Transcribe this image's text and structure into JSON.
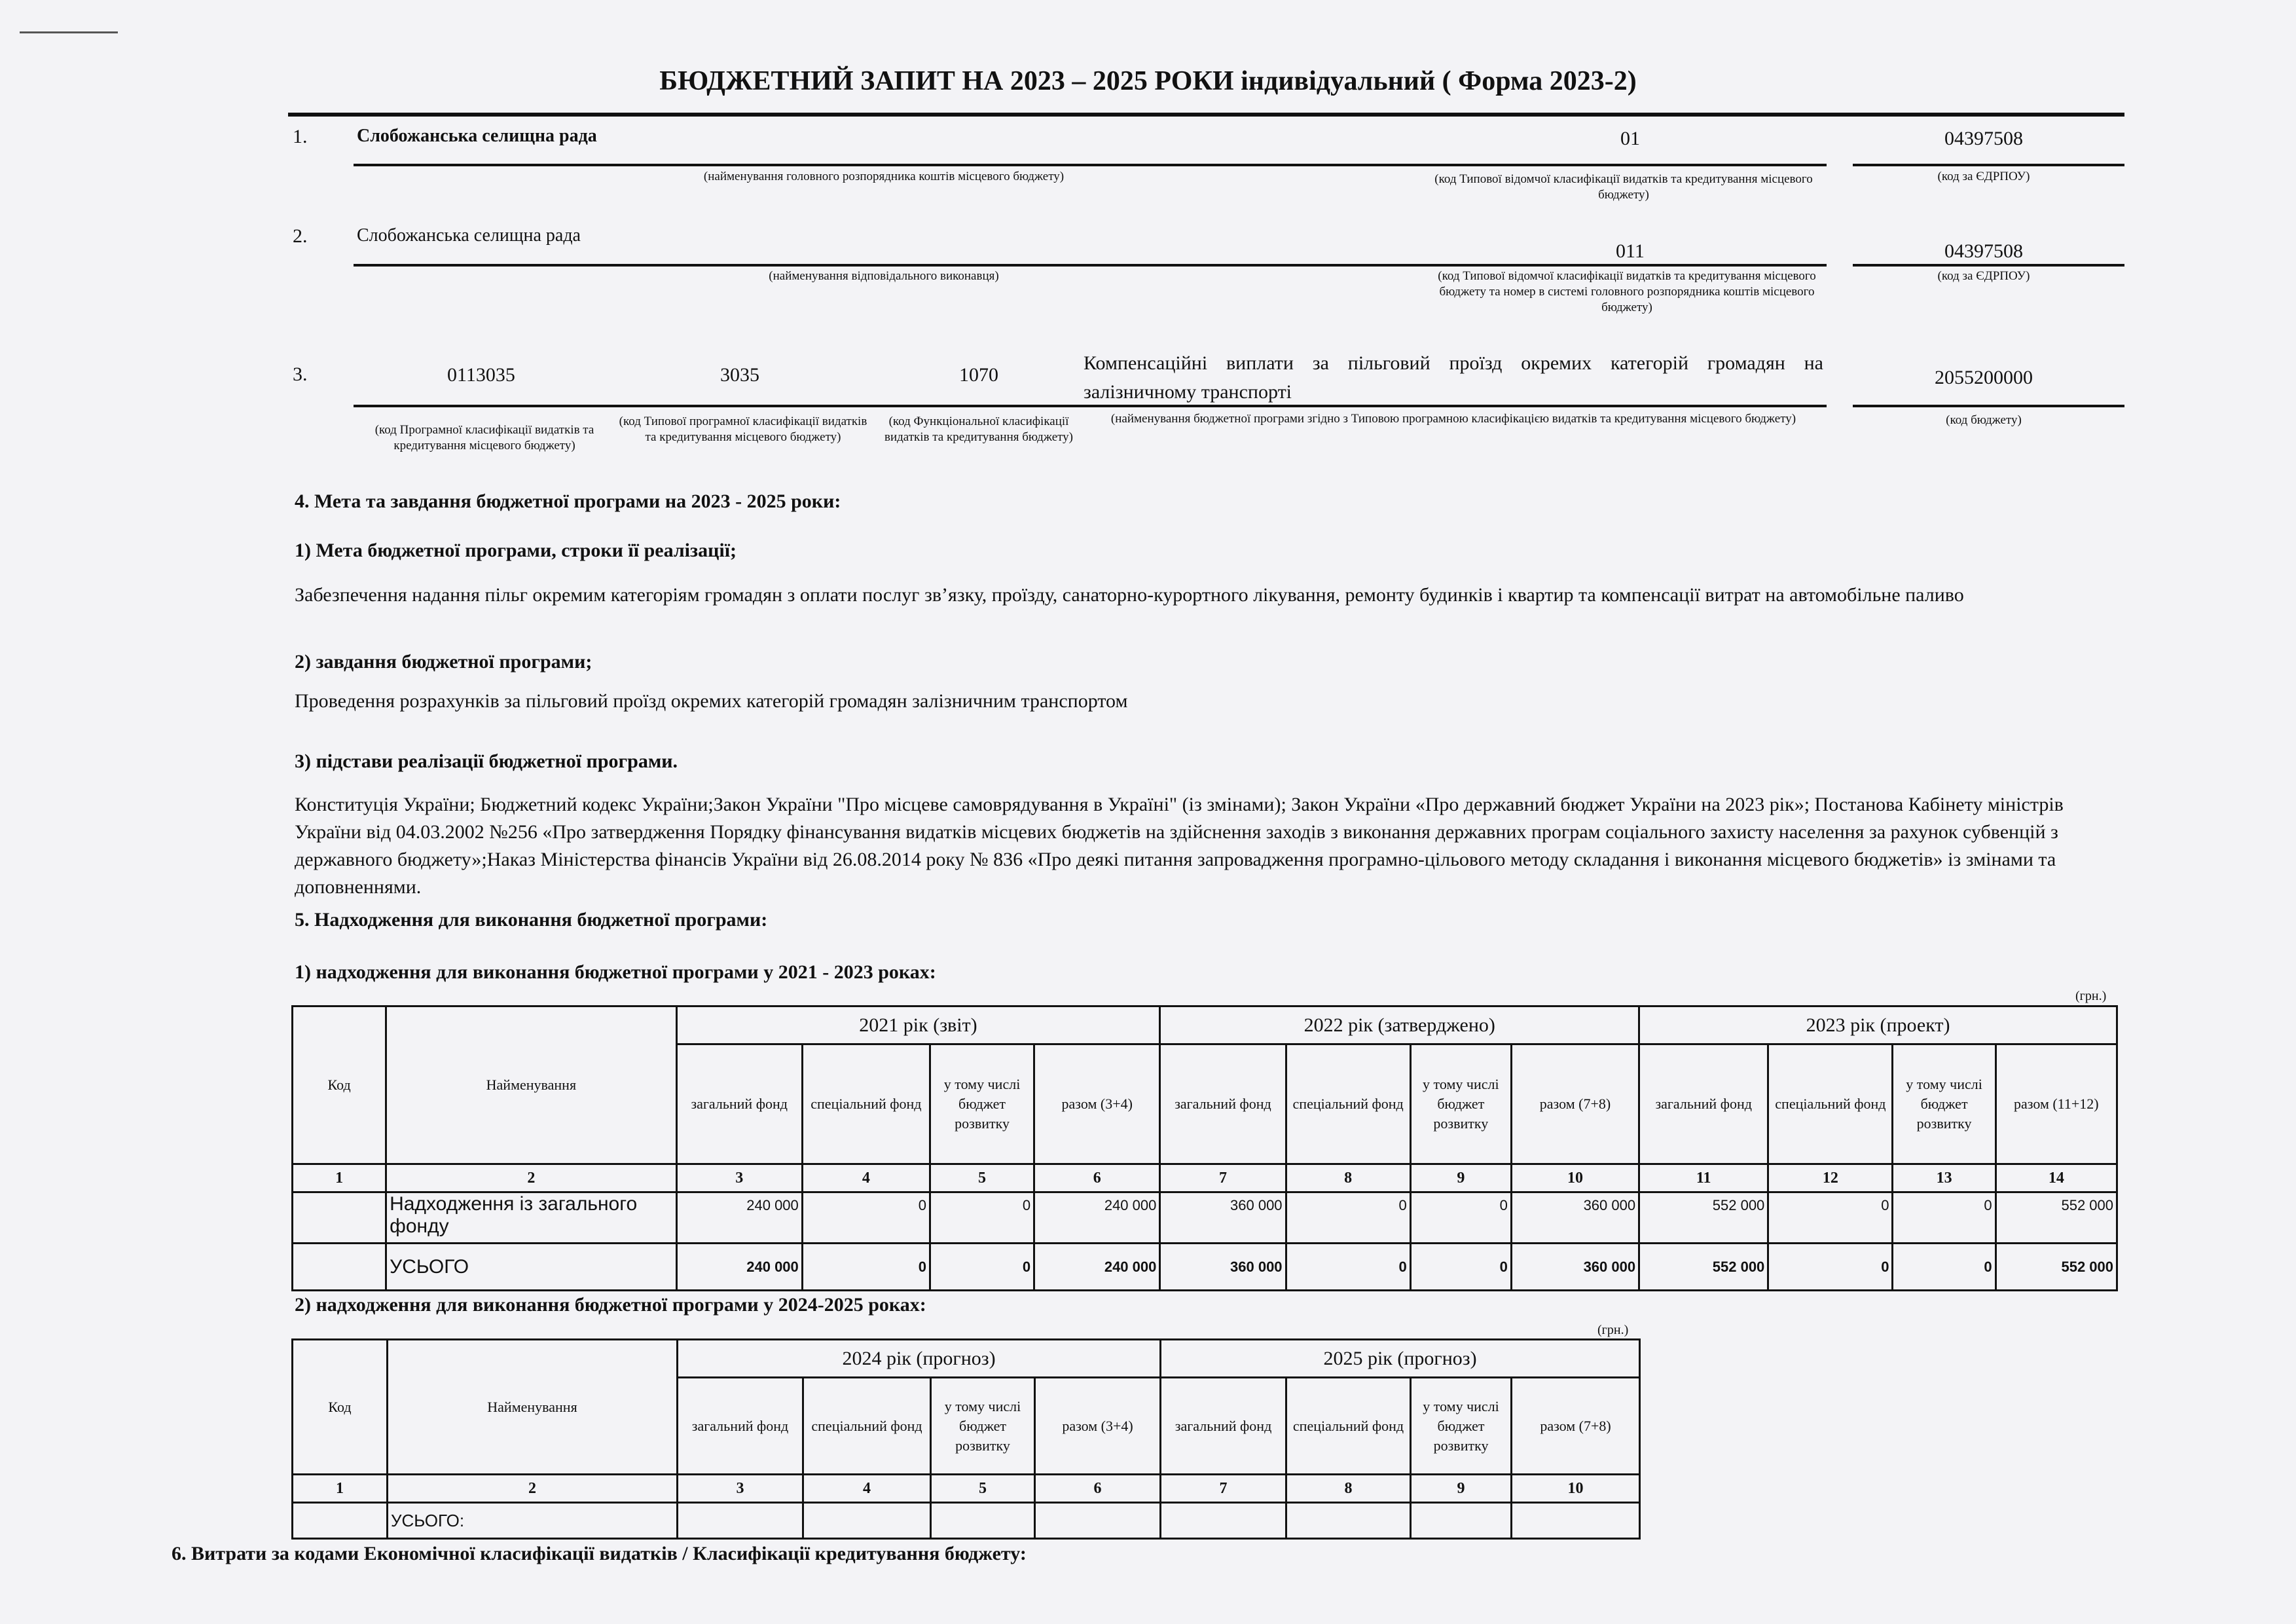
{
  "title": "БЮДЖЕТНИЙ ЗАПИТ НА 2023 – 2025 РОКИ індивідуальний ( Форма 2023-2)",
  "rows": {
    "r1": {
      "num": "1.",
      "name": "Слобожанська селищна рада",
      "code": "01",
      "edrpou": "04397508",
      "cap_name": "(найменування головного розпорядника коштів місцевого бюджету)",
      "cap_code": "(код Типової відомчої класифікації видатків та кредитування місцевого бюджету)",
      "cap_edrpou": "(код за ЄДРПОУ)"
    },
    "r2": {
      "num": "2.",
      "name": "Слобожанська селищна рада",
      "code": "011",
      "edrpou": "04397508",
      "cap_name": "(найменування відповідального виконавця)",
      "cap_code": "(код Типової відомчої класифікації видатків та кредитування місцевого бюджету та номер в системі головного розпорядника коштів місцевого бюджету)",
      "cap_edrpou": "(код за ЄДРПОУ)"
    },
    "r3": {
      "num": "3.",
      "kpkvk": "0113035",
      "tpkvk": "3035",
      "kfkvk": "1070",
      "program": "Компенсаційні виплати за пільговий проїзд окремих категорій громадян на залізничному транспорті",
      "budget_code": "2055200000",
      "cap_kpkvk": "(код Програмної класифікації видатків та кредитування місцевого бюджету)",
      "cap_tpkvk": "(код Типової програмної класифікації видатків та кредитування місцевого бюджету)",
      "cap_kfkvk": "(код Функціональної класифікації видатків та кредитування бюджету)",
      "cap_program": "(найменування бюджетної програми згідно з Типовою програмною класифікацією видатків та кредитування місцевого бюджету)",
      "cap_budget": "(код бюджету)"
    }
  },
  "s4": {
    "heading": "4. Мета та завдання бюджетної програми на 2023 - 2025 роки:",
    "goal_h": "1) Мета бюджетної програми, строки її реалізації;",
    "goal": "Забезпечення надання пільг окремим категоріям громадян з оплати послуг зв’язку, проїзду, санаторно-курортного лікування, ремонту будинків і квартир та компенсації витрат на автомобільне паливо",
    "tasks_h": "2)  завдання бюджетної програми;",
    "tasks": "Проведення розрахунків за пільговий проїзд окремих категорій громадян залізничним транспортом",
    "basis_h": "3) підстави реалізації бюджетної програми.",
    "basis": "Конституція України; Бюджетний кодекс України;Закон України \"Про місцеве самоврядування в Україні\" (із змінами); Закон України «Про державний бюджет України на 2023 рік»; Постанова Кабінету міністрів України від 04.03.2002 №256 «Про затвердження Порядку фінансування видатків місцевих бюджетів на здійснення заходів з виконання державних програм соціального захисту населення за рахунок субвенцій з державного бюджету»;Наказ Міністерства фінансів України від 26.08.2014 року № 836 «Про деякі питання запровадження програмно-цільового методу складання і виконання місцевого бюджетів» із змінами та доповненнями."
  },
  "s5": {
    "heading": "5. Надходження для виконання бюджетної програми:",
    "t1_h": "1) надходження для виконання бюджетної програми у 2021 - 2023 роках:",
    "unit": "(грн.)",
    "t1": {
      "col_code": "Код",
      "col_name": "Найменування",
      "years": [
        "2021 рік (звіт)",
        "2022 рік (затверджено)",
        "2023 рік (проект)"
      ],
      "sub": [
        [
          "загальний фонд",
          "спеціальний фонд",
          "у тому числі бюджет розвитку",
          "разом (3+4)"
        ],
        [
          "загальний фонд",
          "спеціальний фонд",
          "у тому числі бюджет розвитку",
          "разом (7+8)"
        ],
        [
          "загальний фонд",
          "спеціальний фонд",
          "у тому числі бюджет розвитку",
          "разом (11+12)"
        ]
      ],
      "nums": [
        "1",
        "2",
        "3",
        "4",
        "5",
        "6",
        "7",
        "8",
        "9",
        "10",
        "11",
        "12",
        "13",
        "14"
      ],
      "rows": [
        {
          "code": "",
          "name": "Надходження із загального фонду",
          "values": [
            "240 000",
            "0",
            "0",
            "240 000",
            "360 000",
            "0",
            "0",
            "360 000",
            "552 000",
            "0",
            "0",
            "552 000"
          ]
        },
        {
          "code": "",
          "name": "УСЬОГО",
          "values": [
            "240 000",
            "0",
            "0",
            "240 000",
            "360 000",
            "0",
            "0",
            "360 000",
            "552 000",
            "0",
            "0",
            "552 000"
          ]
        }
      ]
    },
    "t2_h": "2) надходження для виконання бюджетної програми у 2024-2025 роках:",
    "t2": {
      "col_code": "Код",
      "col_name": "Найменування",
      "years": [
        "2024 рік (прогноз)",
        "2025 рік (прогноз)"
      ],
      "sub": [
        [
          "загальний фонд",
          "спеціальний фонд",
          "у тому числі бюджет розвитку",
          "разом (3+4)"
        ],
        [
          "загальний фонд",
          "спеціальний фонд",
          "у тому числі бюджет розвитку",
          "разом (7+8)"
        ]
      ],
      "nums": [
        "1",
        "2",
        "3",
        "4",
        "5",
        "6",
        "7",
        "8",
        "9",
        "10"
      ],
      "total": "УСЬОГО:"
    }
  },
  "s6": {
    "heading": "6. Витрати за кодами Економічної класифікації видатків / Класифікації кредитування бюджету:"
  }
}
